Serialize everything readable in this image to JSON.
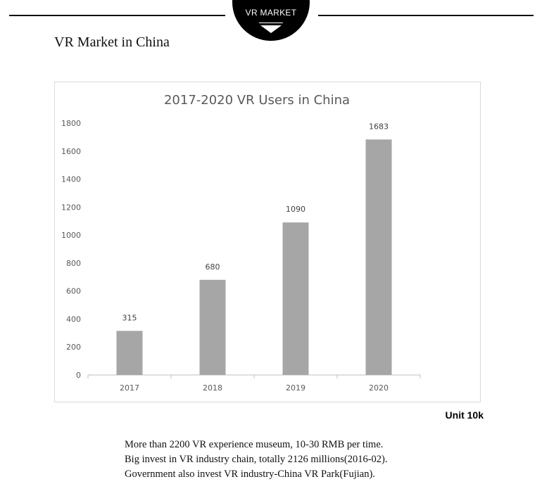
{
  "badge": {
    "label": "VR MARKET"
  },
  "section": {
    "title": "VR Market in China"
  },
  "chart_data": {
    "type": "bar",
    "title": "2017-2020 VR Users in China",
    "categories": [
      "2017",
      "2018",
      "2019",
      "2020"
    ],
    "values": [
      315,
      680,
      1090,
      1683
    ],
    "data_labels": [
      "315",
      "680",
      "1090",
      "1683"
    ],
    "ylim": [
      0,
      1800
    ],
    "yticks": [
      0,
      200,
      400,
      600,
      800,
      1000,
      1200,
      1400,
      1600,
      1800
    ],
    "xlabel": "",
    "ylabel": "",
    "grid": false,
    "bar_color": "#a6a6a6",
    "unit": "Unit 10k"
  },
  "notes": [
    "More than 2200 VR experience museum, 10-30 RMB per time.",
    "Big invest in VR industry chain, totally 2126 millions(2016-02).",
    "Government also invest VR industry-China VR Park(Fujian)."
  ]
}
